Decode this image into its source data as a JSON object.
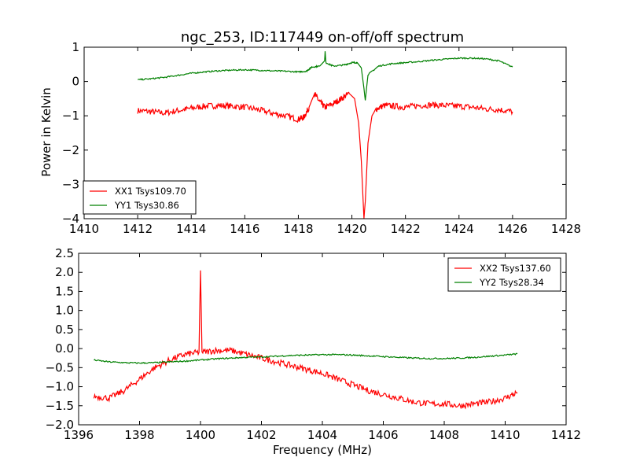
{
  "title": "ngc_253, ID:117449 on-off/off spectrum",
  "ylabel": "Power in Kelvin",
  "xlabel": "Frequency (MHz)",
  "chart_data": [
    {
      "type": "line",
      "xlim": [
        1410,
        1428
      ],
      "ylim": [
        -4,
        1
      ],
      "xticks": [
        1410,
        1412,
        1414,
        1416,
        1418,
        1420,
        1422,
        1424,
        1426,
        1428
      ],
      "yticks": [
        1,
        0,
        -1,
        -2,
        -3,
        -4
      ],
      "xtick_labels": [
        "1410",
        "1412",
        "1414",
        "1416",
        "1418",
        "1420",
        "1422",
        "1424",
        "1426",
        "1428"
      ],
      "ytick_labels": [
        "1",
        "0",
        "−1",
        "−2",
        "−3",
        "−4"
      ],
      "legend_position": "lower-left",
      "series": [
        {
          "name": "XX1 Tsys109.70",
          "color": "#ff0000",
          "x": [
            1412.0,
            1412.5,
            1413.0,
            1413.5,
            1414.0,
            1414.5,
            1415.0,
            1415.5,
            1416.0,
            1416.5,
            1417.0,
            1417.5,
            1418.0,
            1418.2,
            1418.4,
            1418.6,
            1418.8,
            1419.0,
            1419.3,
            1419.6,
            1419.9,
            1420.1,
            1420.25,
            1420.35,
            1420.45,
            1420.5,
            1420.6,
            1420.75,
            1420.9,
            1421.2,
            1421.6,
            1422.0,
            1422.5,
            1423.0,
            1423.5,
            1424.0,
            1424.5,
            1425.0,
            1425.5,
            1426.0
          ],
          "values": [
            -0.85,
            -0.88,
            -0.92,
            -0.85,
            -0.78,
            -0.72,
            -0.7,
            -0.72,
            -0.75,
            -0.82,
            -0.92,
            -1.0,
            -1.1,
            -1.05,
            -0.75,
            -0.35,
            -0.6,
            -0.75,
            -0.65,
            -0.5,
            -0.35,
            -0.5,
            -1.2,
            -2.3,
            -4.0,
            -3.5,
            -1.8,
            -1.0,
            -0.8,
            -0.7,
            -0.72,
            -0.75,
            -0.7,
            -0.68,
            -0.7,
            -0.72,
            -0.75,
            -0.8,
            -0.82,
            -0.88
          ]
        },
        {
          "name": "YY1 Tsys30.86",
          "color": "#008000",
          "x": [
            1412.0,
            1412.5,
            1413.0,
            1413.5,
            1414.0,
            1414.5,
            1415.0,
            1415.5,
            1416.0,
            1416.5,
            1417.0,
            1417.5,
            1418.0,
            1418.3,
            1418.5,
            1418.8,
            1418.98,
            1419.0,
            1419.03,
            1419.3,
            1419.7,
            1420.0,
            1420.2,
            1420.35,
            1420.45,
            1420.5,
            1420.6,
            1421.0,
            1421.5,
            1422.0,
            1422.5,
            1423.0,
            1423.5,
            1424.0,
            1424.5,
            1425.0,
            1425.5,
            1426.0
          ],
          "values": [
            0.05,
            0.08,
            0.12,
            0.18,
            0.24,
            0.28,
            0.31,
            0.33,
            0.34,
            0.33,
            0.31,
            0.3,
            0.28,
            0.3,
            0.42,
            0.45,
            0.6,
            0.88,
            0.55,
            0.45,
            0.48,
            0.55,
            0.55,
            0.4,
            -0.2,
            -0.55,
            0.2,
            0.45,
            0.52,
            0.55,
            0.58,
            0.62,
            0.65,
            0.68,
            0.68,
            0.66,
            0.6,
            0.42
          ]
        }
      ]
    },
    {
      "type": "line",
      "xlim": [
        1396,
        1412
      ],
      "ylim": [
        -2,
        2.5
      ],
      "xticks": [
        1396,
        1398,
        1400,
        1402,
        1404,
        1406,
        1408,
        1410,
        1412
      ],
      "yticks": [
        2.5,
        2.0,
        1.5,
        1.0,
        0.5,
        0.0,
        -0.5,
        -1.0,
        -1.5,
        -2.0
      ],
      "xtick_labels": [
        "1396",
        "1398",
        "1400",
        "1402",
        "1404",
        "1406",
        "1408",
        "1410",
        "1412"
      ],
      "ytick_labels": [
        "2.5",
        "2.0",
        "1.5",
        "1.0",
        "0.5",
        "0.0",
        "−0.5",
        "−1.0",
        "−1.5",
        "−2.0"
      ],
      "legend_position": "upper-right",
      "series": [
        {
          "name": "XX2 Tsys137.60",
          "color": "#ff0000",
          "x": [
            1396.5,
            1397.0,
            1397.5,
            1398.0,
            1398.5,
            1399.0,
            1399.5,
            1399.95,
            1400.0,
            1400.05,
            1400.5,
            1401.0,
            1401.5,
            1402.0,
            1402.5,
            1403.0,
            1403.5,
            1404.0,
            1404.5,
            1405.0,
            1405.5,
            1406.0,
            1406.5,
            1407.0,
            1407.5,
            1408.0,
            1408.5,
            1409.0,
            1409.5,
            1410.0,
            1410.4
          ],
          "values": [
            -1.25,
            -1.3,
            -1.1,
            -0.8,
            -0.5,
            -0.3,
            -0.15,
            -0.1,
            2.05,
            -0.1,
            -0.05,
            -0.05,
            -0.15,
            -0.25,
            -0.35,
            -0.45,
            -0.55,
            -0.65,
            -0.8,
            -0.95,
            -1.1,
            -1.2,
            -1.3,
            -1.4,
            -1.45,
            -1.45,
            -1.5,
            -1.45,
            -1.4,
            -1.3,
            -1.15
          ]
        },
        {
          "name": "YY2 Tsys28.34",
          "color": "#008000",
          "x": [
            1396.5,
            1397.0,
            1397.5,
            1398.0,
            1398.5,
            1399.0,
            1399.5,
            1400.0,
            1400.5,
            1401.0,
            1401.5,
            1402.0,
            1402.5,
            1403.0,
            1403.5,
            1404.0,
            1404.5,
            1405.0,
            1405.5,
            1406.0,
            1406.5,
            1407.0,
            1407.5,
            1408.0,
            1408.5,
            1409.0,
            1409.5,
            1410.0,
            1410.4
          ],
          "values": [
            -0.3,
            -0.35,
            -0.37,
            -0.38,
            -0.37,
            -0.35,
            -0.33,
            -0.3,
            -0.27,
            -0.25,
            -0.23,
            -0.22,
            -0.2,
            -0.18,
            -0.17,
            -0.16,
            -0.16,
            -0.17,
            -0.19,
            -0.21,
            -0.23,
            -0.25,
            -0.26,
            -0.26,
            -0.25,
            -0.23,
            -0.2,
            -0.17,
            -0.14
          ]
        }
      ]
    }
  ]
}
